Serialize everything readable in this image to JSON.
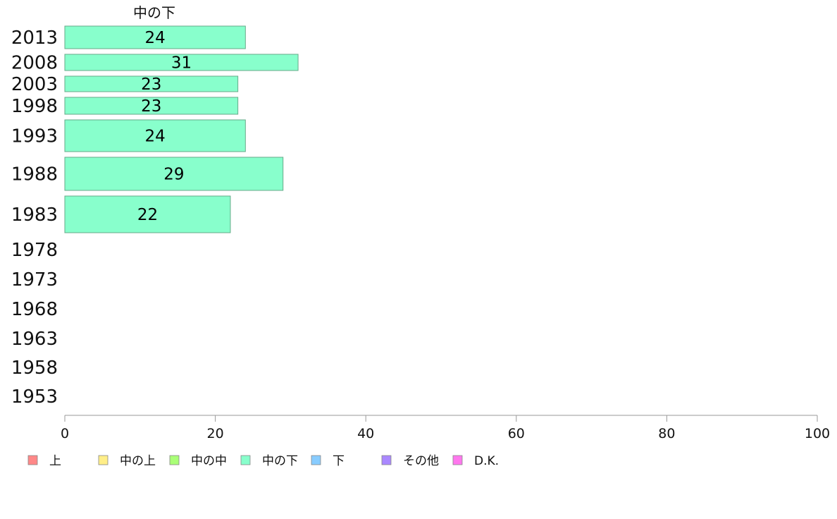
{
  "chart_data": {
    "type": "bar",
    "orientation": "horizontal",
    "series_title": "中の下",
    "categories": [
      "2013",
      "2008",
      "2003",
      "1998",
      "1993",
      "1988",
      "1983",
      "1978",
      "1973",
      "1968",
      "1963",
      "1958",
      "1953"
    ],
    "values": [
      24,
      31,
      23,
      23,
      24,
      29,
      22,
      null,
      null,
      null,
      null,
      null,
      null
    ],
    "value_labels": [
      "24",
      "31",
      "23",
      "23",
      "24",
      "29",
      "22",
      "",
      "",
      "",
      "",
      "",
      ""
    ],
    "xlim": [
      0,
      100
    ],
    "xticks": [
      "0",
      "20",
      "40",
      "60",
      "80",
      "100"
    ],
    "bar_color": "#88ffcc",
    "bar_stroke": "#66aa88",
    "grid": false,
    "legend_position": "bottom",
    "legend": [
      {
        "label": "上",
        "color": "#ff8888"
      },
      {
        "label": "中の上",
        "color": "#ffee88"
      },
      {
        "label": "中の中",
        "color": "#aaff77"
      },
      {
        "label": "中の下",
        "color": "#88ffcc"
      },
      {
        "label": "下",
        "color": "#88ccff"
      },
      {
        "label": "その他",
        "color": "#aa88ff"
      },
      {
        "label": "D.K.",
        "color": "#ff77ee"
      }
    ]
  }
}
